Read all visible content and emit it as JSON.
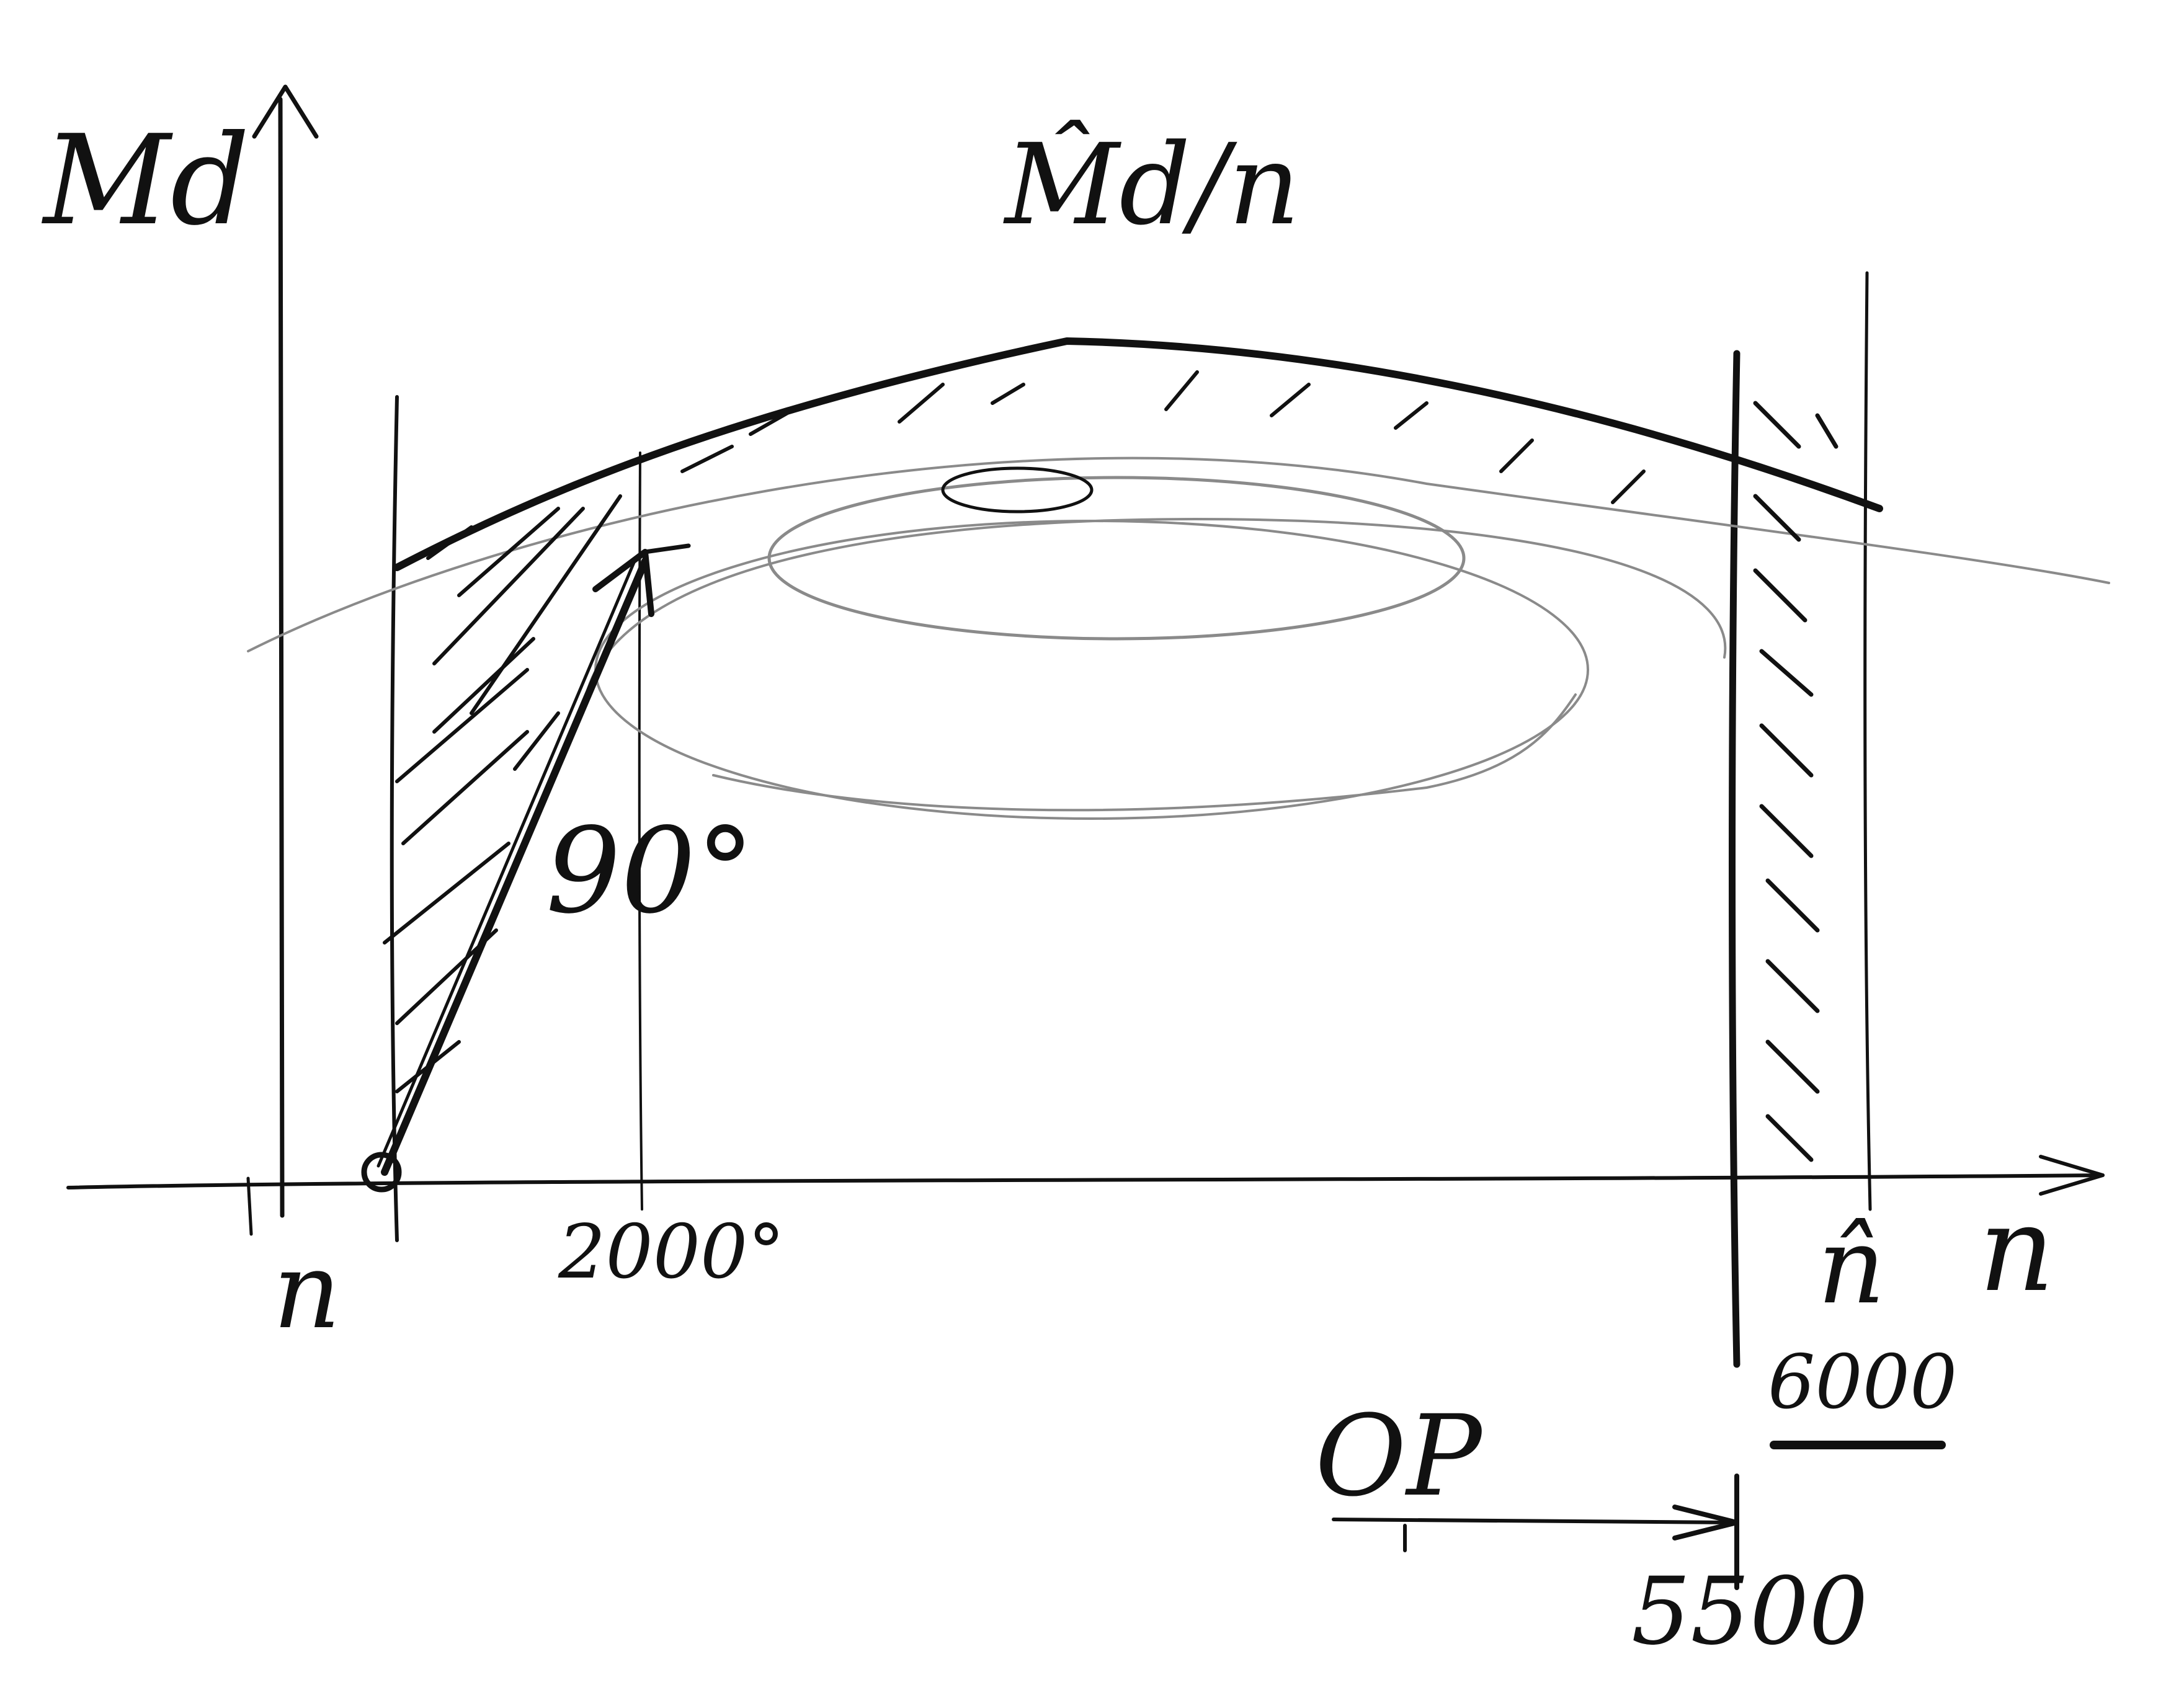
{
  "labels": {
    "y_axis": "Md",
    "curve": "M̂d/n",
    "x_axis": "n",
    "n_min": "n",
    "n_max": "n̂",
    "angle": "90°",
    "rpm_2000": "2000°",
    "rpm_6000": "6000",
    "rpm_5500": "5500",
    "op_symbol": "OP"
  },
  "colors": {
    "ink": "#111111",
    "shading": "#8a8a8a",
    "paper": "#ffffff"
  }
}
